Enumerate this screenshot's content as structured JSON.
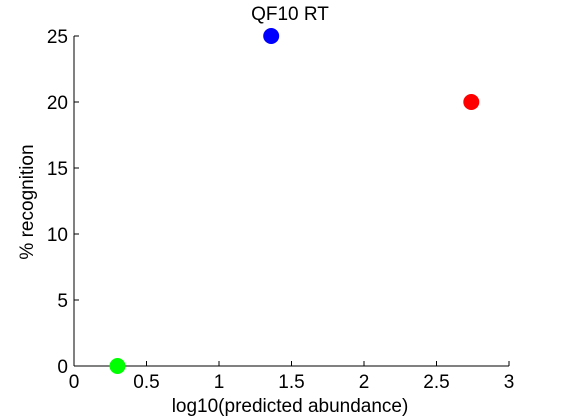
{
  "chart_data": {
    "type": "scatter",
    "title": "QF10 RT",
    "xlabel": "log10(predicted abundance)",
    "ylabel": "% recognition",
    "xlim": [
      0,
      3
    ],
    "ylim": [
      0,
      25
    ],
    "xticks": [
      0,
      0.5,
      1,
      1.5,
      2,
      2.5,
      3
    ],
    "xtick_labels": [
      "0",
      "0.5",
      "1",
      "1.5",
      "2",
      "2.5",
      "3"
    ],
    "yticks": [
      0,
      5,
      10,
      15,
      20,
      25
    ],
    "ytick_labels": [
      "0",
      "5",
      "10",
      "15",
      "20",
      "25"
    ],
    "grid": false,
    "points": [
      {
        "x": 1.36,
        "y": 25,
        "color": "#0000ff"
      },
      {
        "x": 2.74,
        "y": 20,
        "color": "#ff0000"
      },
      {
        "x": 0.3,
        "y": 0,
        "color": "#00ff00"
      }
    ]
  }
}
